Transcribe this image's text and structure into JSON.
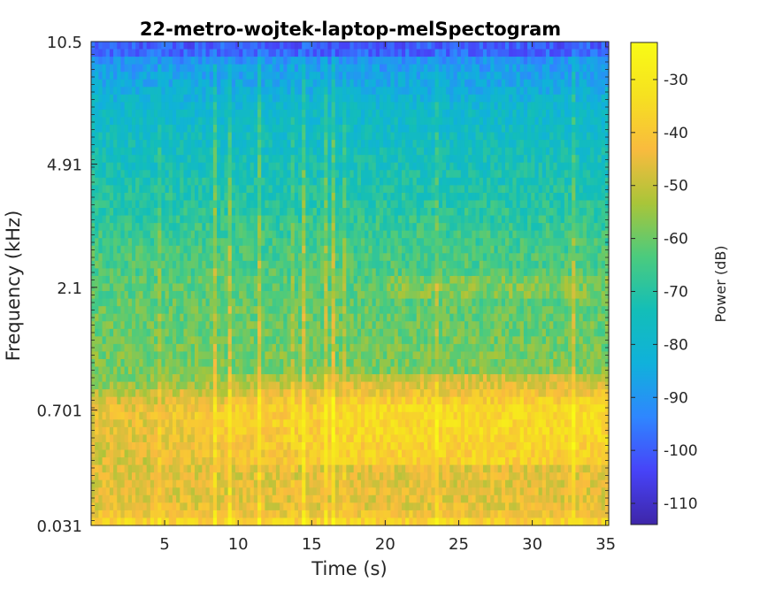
{
  "chart_data": {
    "type": "heatmap",
    "title": "22-metro-wojtek-laptop-melSpectogram",
    "xlabel": "Time (s)",
    "ylabel": "Frequency (kHz)",
    "xlim": [
      0,
      35.2
    ],
    "x_ticks": [
      5,
      10,
      15,
      20,
      25,
      30,
      35
    ],
    "x_tick_labels": [
      "5",
      "10",
      "15",
      "20",
      "25",
      "30",
      "35"
    ],
    "y_scale": "mel",
    "y_ticks_khz": [
      10.5,
      4.91,
      2.1,
      0.701,
      0.031
    ],
    "y_tick_labels": [
      "10.5",
      "4.91",
      "2.1",
      "0.701",
      "0.031"
    ],
    "colorbar": {
      "label": "Power (dB)",
      "range": [
        -114,
        -23
      ],
      "ticks": [
        -30,
        -40,
        -50,
        -60,
        -70,
        -80,
        -90,
        -100,
        -110
      ],
      "tick_labels": [
        "-30",
        "-40",
        "-50",
        "-60",
        "-70",
        "-80",
        "-90",
        "-100",
        "-110"
      ],
      "colormap": [
        "#3e26a8",
        "#4743f8",
        "#2f86ff",
        "#10b1db",
        "#13beb8",
        "#4bcb7e",
        "#a9c539",
        "#f9bb3e",
        "#f6e120",
        "#f9fb15"
      ]
    },
    "power_profile_db": {
      "description": "approximate mean power (dB) by frequency, low to high",
      "frequency_khz": [
        0.031,
        0.1,
        0.3,
        0.5,
        0.701,
        1.0,
        2.1,
        3.0,
        4.91,
        7.0,
        10.5
      ],
      "power_db": [
        -33,
        -45,
        -46,
        -44,
        -42,
        -58,
        -62,
        -66,
        -74,
        -79,
        -95
      ]
    }
  }
}
